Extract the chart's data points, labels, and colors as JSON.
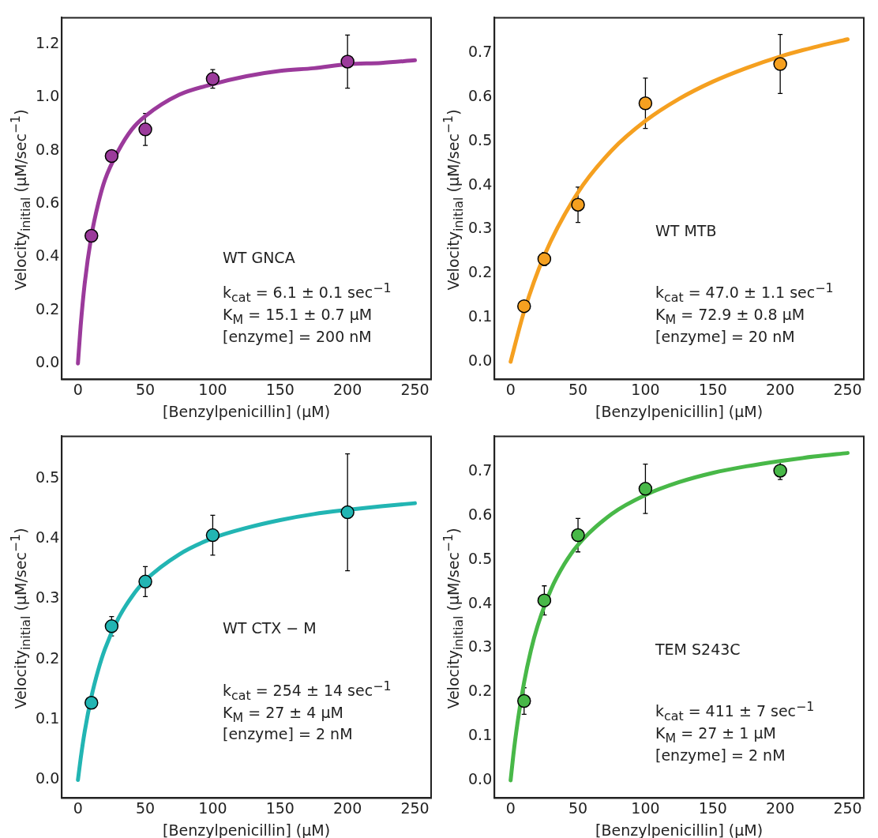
{
  "chart_data": [
    {
      "type": "scatter",
      "xlabel": "[Benzylpenicillin] (μM)",
      "ylabel": "Velocity$_{initial}$ (μM/sec$^{−1}$)",
      "xlim": [
        -12,
        262
      ],
      "ylim": [
        -0.06,
        1.3
      ],
      "xticks": [
        0,
        50,
        100,
        150,
        200,
        250
      ],
      "yticks": [
        {
          "value": 0,
          "label": "0.0"
        },
        {
          "value": 0.2,
          "label": "0.2"
        },
        {
          "value": 0.4,
          "label": "0.4"
        },
        {
          "value": 0.6,
          "label": "0.6"
        },
        {
          "value": 0.8,
          "label": "0.8"
        },
        {
          "value": 1,
          "label": "1.0"
        },
        {
          "value": 1.2,
          "label": "1.2"
        }
      ],
      "grid": false,
      "legend": false,
      "annotations": [
        "WT GNCA",
        "k$_{cat}$ = 6.1 ± 0.1 sec$^{−1}$",
        "K$_{M}$ = 15.1 ± 0.7 μM",
        "[enzyme] = 200 nM"
      ],
      "series": [
        {
          "type": "scatter",
          "marker": "circle",
          "color": "#9b3a9b",
          "x": [
            10,
            25,
            50,
            100,
            200
          ],
          "values": [
            0.48,
            0.78,
            0.88,
            1.07,
            1.135
          ],
          "errors": [
            null,
            null,
            0.06,
            0.035,
            0.1
          ]
        },
        {
          "type": "line",
          "color": "#9b3a9b",
          "x": [
            0,
            2,
            5,
            10,
            15,
            20,
            30,
            40,
            50,
            75,
            100,
            125,
            150,
            175,
            200,
            225,
            250
          ],
          "values": [
            0,
            0.14,
            0.3,
            0.48,
            0.6,
            0.69,
            0.8,
            0.88,
            0.93,
            1.01,
            1.05,
            1.08,
            1.1,
            1.11,
            1.125,
            1.13,
            1.14
          ]
        }
      ]
    },
    {
      "type": "scatter",
      "xlabel": "[Benzylpenicillin] (μM)",
      "ylabel": "Velocity$_{initial}$ (μM/sec$^{−1}$)",
      "xlim": [
        -12,
        262
      ],
      "ylim": [
        -0.04,
        0.78
      ],
      "xticks": [
        0,
        50,
        100,
        150,
        200,
        250
      ],
      "yticks": [
        {
          "value": 0,
          "label": "0.0"
        },
        {
          "value": 0.1,
          "label": "0.1"
        },
        {
          "value": 0.2,
          "label": "0.2"
        },
        {
          "value": 0.3,
          "label": "0.3"
        },
        {
          "value": 0.4,
          "label": "0.4"
        },
        {
          "value": 0.5,
          "label": "0.5"
        },
        {
          "value": 0.6,
          "label": "0.6"
        },
        {
          "value": 0.7,
          "label": "0.7"
        }
      ],
      "grid": false,
      "legend": false,
      "annotations": [
        "WT MTB",
        "k$_{cat}$ = 47.0 ± 1.1 sec$^{−1}$",
        "K$_{M}$ = 72.9 ± 0.8 μM",
        "[enzyme] = 20 nM"
      ],
      "series": [
        {
          "type": "scatter",
          "marker": "circle",
          "color": "#f5a020",
          "x": [
            10,
            25,
            50,
            100,
            200
          ],
          "values": [
            0.126,
            0.233,
            0.356,
            0.586,
            0.675
          ],
          "errors": [
            null,
            0.015,
            0.04,
            0.057,
            0.067
          ]
        },
        {
          "type": "line",
          "color": "#f5a020",
          "x": [
            0,
            10,
            25,
            50,
            75,
            100,
            125,
            150,
            175,
            200,
            225,
            250
          ],
          "values": [
            0,
            0.114,
            0.241,
            0.384,
            0.479,
            0.546,
            0.596,
            0.635,
            0.666,
            0.692,
            0.713,
            0.731
          ]
        }
      ]
    },
    {
      "type": "scatter",
      "xlabel": "[Benzylpenicillin] (μM)",
      "ylabel": "Velocity$_{initial}$ (μM/sec$^{−1}$)",
      "xlim": [
        -12,
        262
      ],
      "ylim": [
        -0.03,
        0.57
      ],
      "xticks": [
        0,
        50,
        100,
        150,
        200,
        250
      ],
      "yticks": [
        {
          "value": 0,
          "label": "0.0"
        },
        {
          "value": 0.1,
          "label": "0.1"
        },
        {
          "value": 0.2,
          "label": "0.2"
        },
        {
          "value": 0.3,
          "label": "0.3"
        },
        {
          "value": 0.4,
          "label": "0.4"
        },
        {
          "value": 0.5,
          "label": "0.5"
        }
      ],
      "grid": false,
      "legend": false,
      "annotations": [
        "WT CTX − M",
        "k$_{cat}$ = 254 ± 14 sec$^{−1}$",
        "K$_{M}$ = 27 ± 4 μM",
        "[enzyme] = 2 nM"
      ],
      "series": [
        {
          "type": "scatter",
          "marker": "circle",
          "color": "#22b5b3",
          "x": [
            10,
            25,
            50,
            100,
            200
          ],
          "values": [
            0.128,
            0.255,
            0.329,
            0.406,
            0.444
          ],
          "errors": [
            null,
            0.016,
            0.025,
            0.033,
            0.097
          ]
        },
        {
          "type": "line",
          "color": "#22b5b3",
          "x": [
            0,
            2,
            5,
            10,
            15,
            20,
            30,
            40,
            50,
            75,
            100,
            125,
            150,
            175,
            200,
            225,
            250
          ],
          "values": [
            0,
            0.035,
            0.08,
            0.138,
            0.182,
            0.217,
            0.268,
            0.304,
            0.331,
            0.374,
            0.401,
            0.418,
            0.431,
            0.441,
            0.448,
            0.454,
            0.459
          ]
        }
      ]
    },
    {
      "type": "scatter",
      "xlabel": "[Benzylpenicillin] (μM)",
      "ylabel": "Velocity$_{initial}$ (μM/sec$^{−1}$)",
      "xlim": [
        -12,
        262
      ],
      "ylim": [
        -0.04,
        0.78
      ],
      "xticks": [
        0,
        50,
        100,
        150,
        200,
        250
      ],
      "yticks": [
        {
          "value": 0,
          "label": "0.0"
        },
        {
          "value": 0.1,
          "label": "0.1"
        },
        {
          "value": 0.2,
          "label": "0.2"
        },
        {
          "value": 0.3,
          "label": "0.3"
        },
        {
          "value": 0.4,
          "label": "0.4"
        },
        {
          "value": 0.5,
          "label": "0.5"
        },
        {
          "value": 0.6,
          "label": "0.6"
        },
        {
          "value": 0.7,
          "label": "0.7"
        }
      ],
      "grid": false,
      "legend": false,
      "annotations": [
        "TEM S243C",
        "k$_{cat}$ = 411 ± 7 sec$^{−1}$",
        "K$_{M}$ = 27 ± 1 μM",
        "[enzyme] = 2 nM"
      ],
      "series": [
        {
          "type": "scatter",
          "marker": "circle",
          "color": "#48b848",
          "x": [
            10,
            25,
            50,
            100,
            200
          ],
          "values": [
            0.18,
            0.408,
            0.556,
            0.661,
            0.702
          ],
          "errors": [
            0.03,
            0.033,
            0.038,
            0.056,
            0.02
          ]
        },
        {
          "type": "line",
          "color": "#48b848",
          "x": [
            0,
            2,
            5,
            10,
            15,
            20,
            30,
            40,
            50,
            75,
            100,
            125,
            150,
            175,
            200,
            225,
            250
          ],
          "values": [
            0,
            0.057,
            0.128,
            0.222,
            0.294,
            0.35,
            0.433,
            0.491,
            0.534,
            0.604,
            0.647,
            0.676,
            0.697,
            0.712,
            0.724,
            0.734,
            0.742
          ]
        }
      ]
    }
  ]
}
